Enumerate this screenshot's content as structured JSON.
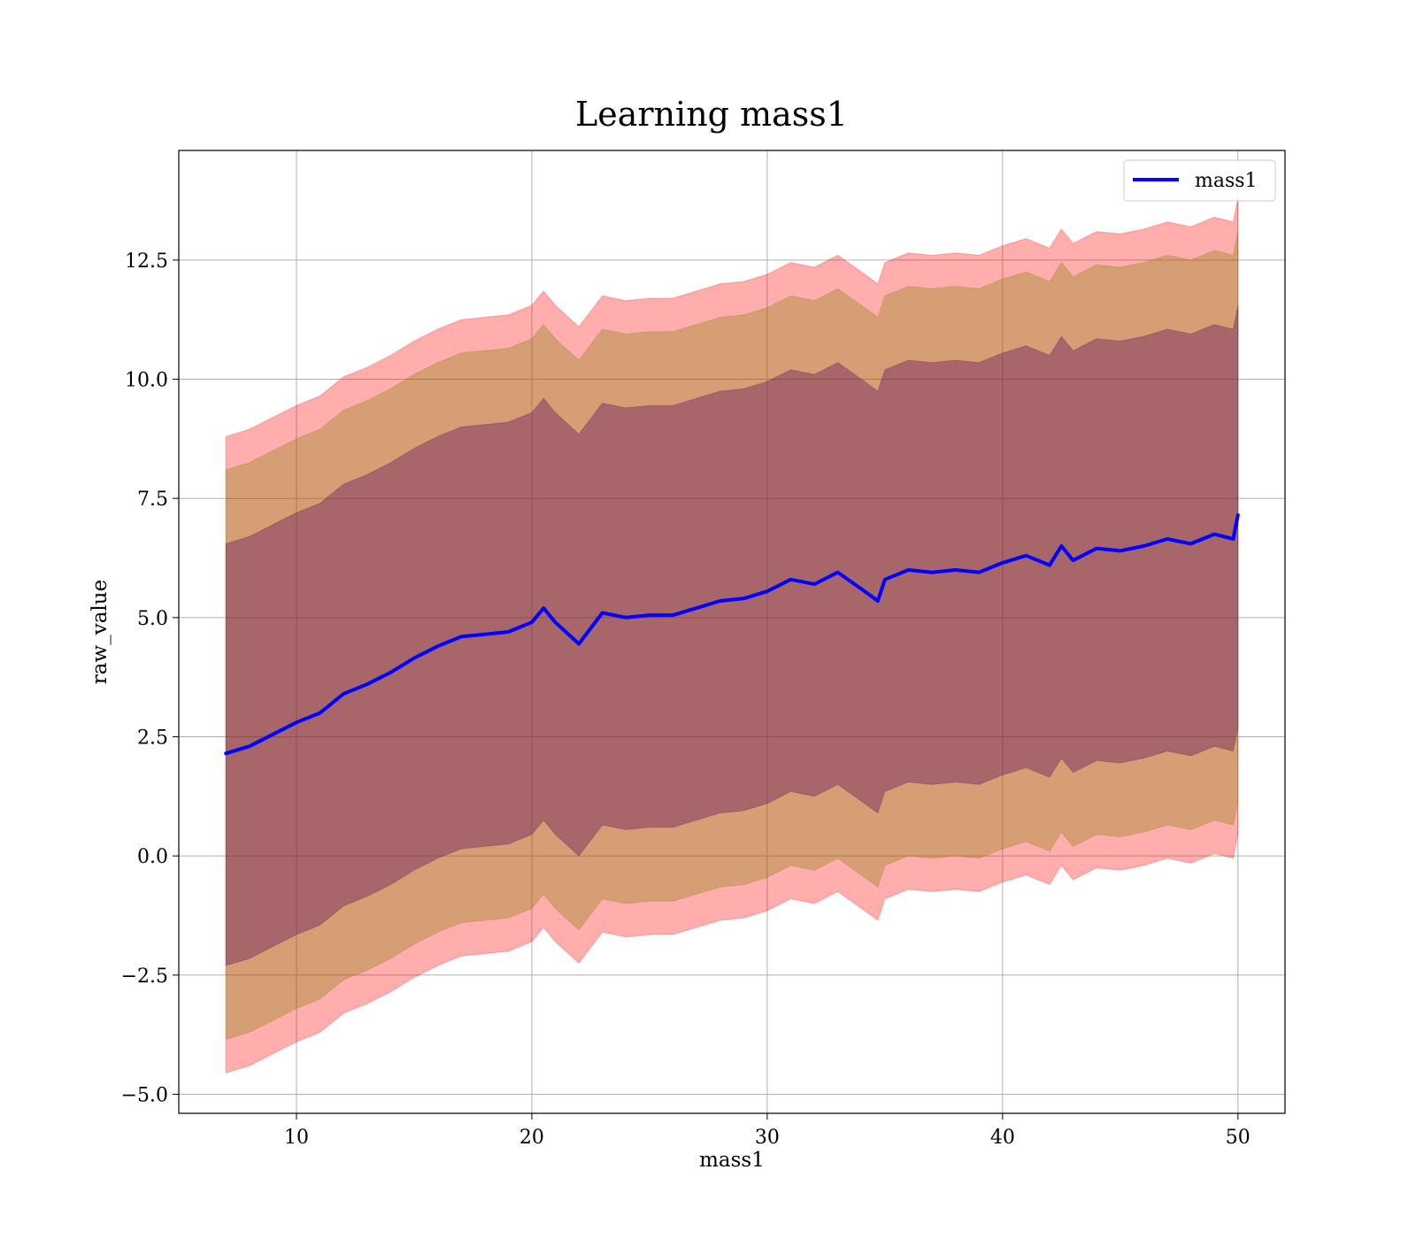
{
  "chart_data": {
    "type": "line",
    "title": "Learning mass1",
    "xlabel": "mass1",
    "ylabel": "raw_value",
    "xlim": [
      5,
      52
    ],
    "ylim": [
      -5.4,
      14.8
    ],
    "xticks": [
      10,
      20,
      30,
      40,
      50
    ],
    "xtick_labels": [
      "10",
      "20",
      "30",
      "40",
      "50"
    ],
    "yticks": [
      -5.0,
      -2.5,
      0.0,
      2.5,
      5.0,
      7.5,
      10.0,
      12.5
    ],
    "ytick_labels": [
      "−5.0",
      "−2.5",
      "0.0",
      "2.5",
      "5.0",
      "7.5",
      "10.0",
      "12.5"
    ],
    "grid": true,
    "legend": {
      "placement": "top-right",
      "entries": [
        {
          "label": "mass1",
          "color": "#0000ff"
        }
      ]
    },
    "series": [
      {
        "name": "mass1",
        "color": "#0000ff",
        "x": [
          7.0,
          8.0,
          9.0,
          10.0,
          11.0,
          12.0,
          13.0,
          14.0,
          15.0,
          16.0,
          17.0,
          18.0,
          19.0,
          20.0,
          20.5,
          21.0,
          22.0,
          23.0,
          24.0,
          25.0,
          26.0,
          27.0,
          28.0,
          29.0,
          30.0,
          31.0,
          32.0,
          33.0,
          34.0,
          34.7,
          35.0,
          36.0,
          37.0,
          38.0,
          39.0,
          40.0,
          41.0,
          42.0,
          42.5,
          43.0,
          44.0,
          45.0,
          46.0,
          47.0,
          48.0,
          49.0,
          49.8,
          50.0
        ],
        "y": [
          2.15,
          2.3,
          2.55,
          2.8,
          3.0,
          3.4,
          3.6,
          3.85,
          4.15,
          4.4,
          4.6,
          4.65,
          4.7,
          4.9,
          5.2,
          4.9,
          4.45,
          5.1,
          5.0,
          5.05,
          5.05,
          5.2,
          5.35,
          5.4,
          5.55,
          5.8,
          5.7,
          5.95,
          5.6,
          5.35,
          5.8,
          6.0,
          5.95,
          6.0,
          5.95,
          6.15,
          6.3,
          6.1,
          6.5,
          6.2,
          6.45,
          6.4,
          6.5,
          6.65,
          6.55,
          6.75,
          6.65,
          7.15
        ]
      }
    ],
    "bands": [
      {
        "name": "outer",
        "color": "#ff0000",
        "opacity": 0.32,
        "lower_offset": -6.7,
        "upper_offset": 6.65
      },
      {
        "name": "middle",
        "color": "#808000",
        "opacity": 0.32,
        "lower_offset": -6.0,
        "upper_offset": 5.95
      },
      {
        "name": "inner",
        "color": "#5a0a5a",
        "opacity": 0.38,
        "lower_offset": -4.45,
        "upper_offset": 4.4
      }
    ]
  }
}
